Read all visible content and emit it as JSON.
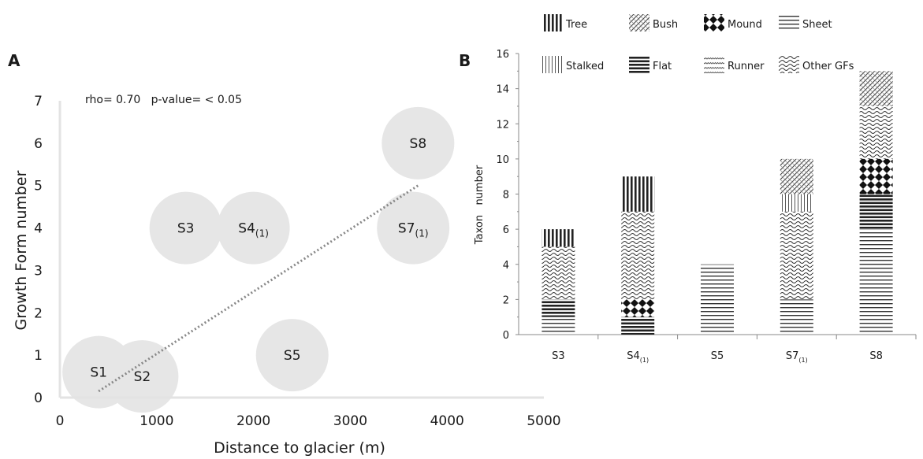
{
  "panel_a_label": "A",
  "panel_b_label": "B",
  "chart_data": [
    {
      "type": "scatter",
      "panel": "A",
      "annotation": "rho= 0.70   p-value= < 0.05",
      "xlabel": "Distance to glacier (m)",
      "ylabel": "Growth Form number",
      "xlim": [
        0,
        5000
      ],
      "ylim": [
        0,
        7
      ],
      "x_ticks": [
        "0",
        "1000",
        "2000",
        "3000",
        "4000",
        "5000"
      ],
      "y_ticks": [
        "0",
        "1",
        "2",
        "3",
        "4",
        "5",
        "6",
        "7"
      ],
      "grid": false,
      "trendline": {
        "style": "dotted",
        "x": [
          400,
          3700
        ],
        "y": [
          0.15,
          5.0
        ]
      },
      "points": [
        {
          "name": "S1",
          "sub": "",
          "x": 400,
          "y": 0.6
        },
        {
          "name": "S2",
          "sub": "",
          "x": 850,
          "y": 0.5
        },
        {
          "name": "S3",
          "sub": "",
          "x": 1300,
          "y": 4
        },
        {
          "name": "S4",
          "sub": "(1)",
          "x": 2000,
          "y": 4
        },
        {
          "name": "S5",
          "sub": "",
          "x": 2400,
          "y": 1
        },
        {
          "name": "S7",
          "sub": "(1)",
          "x": 3650,
          "y": 4
        },
        {
          "name": "S8",
          "sub": "",
          "x": 3700,
          "y": 6
        }
      ]
    },
    {
      "type": "bar",
      "stacked": true,
      "panel": "B",
      "ylabel": "Taxon   number",
      "ylim": [
        0,
        16
      ],
      "y_ticks": [
        "0",
        "2",
        "4",
        "6",
        "8",
        "10",
        "12",
        "14",
        "16"
      ],
      "legend_position": "top",
      "categories": [
        {
          "name": "S3",
          "sub": ""
        },
        {
          "name": "S4",
          "sub": "(1)"
        },
        {
          "name": "S5",
          "sub": ""
        },
        {
          "name": "S7",
          "sub": "(1)"
        },
        {
          "name": "S8",
          "sub": ""
        }
      ],
      "series": [
        {
          "name": "Sheet",
          "pattern": "sheet",
          "values": [
            1,
            0,
            4,
            2,
            6
          ]
        },
        {
          "name": "Flat",
          "pattern": "flat",
          "values": [
            1,
            1,
            0,
            0,
            2
          ]
        },
        {
          "name": "Mound",
          "pattern": "mound",
          "values": [
            0,
            1,
            0,
            0,
            2
          ]
        },
        {
          "name": "Other GFs",
          "pattern": "other",
          "values": [
            3,
            5,
            0,
            5,
            3
          ]
        },
        {
          "name": "Stalked",
          "pattern": "stalked",
          "values": [
            0,
            0,
            0,
            1,
            0
          ]
        },
        {
          "name": "Runner",
          "pattern": "runner",
          "values": [
            0,
            0,
            0,
            0,
            0
          ]
        },
        {
          "name": "Bush",
          "pattern": "bush",
          "values": [
            0,
            0,
            0,
            2,
            2
          ]
        },
        {
          "name": "Tree",
          "pattern": "tree",
          "values": [
            1,
            2,
            0,
            0,
            0
          ]
        }
      ],
      "legend": [
        {
          "name": "Tree",
          "pattern": "tree"
        },
        {
          "name": "Bush",
          "pattern": "bush"
        },
        {
          "name": "Mound",
          "pattern": "mound"
        },
        {
          "name": "Sheet",
          "pattern": "sheet"
        },
        {
          "name": "Stalked",
          "pattern": "stalked"
        },
        {
          "name": "Flat",
          "pattern": "flat"
        },
        {
          "name": "Runner",
          "pattern": "runner"
        },
        {
          "name": "Other GFs",
          "pattern": "other"
        }
      ]
    }
  ]
}
